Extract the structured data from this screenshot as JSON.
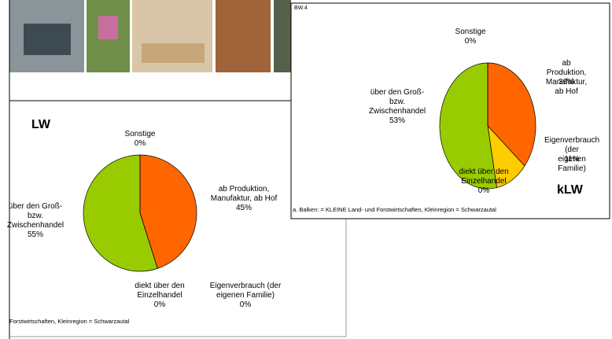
{
  "chart_data": [
    {
      "type": "pie",
      "title": "LW",
      "categories": [
        "ab Produktion,\nManufaktur, ab Hof",
        "Eigenverbrauch (der\neigenen Familie)",
        "diekt über den\nEinzelhandel",
        "über den Groß-\nbzw.\nZwischenhandel",
        "Sonstige"
      ],
      "values": [
        45,
        0,
        0,
        55,
        0
      ],
      "value_labels": [
        "45%",
        "0%",
        "0%",
        "55%",
        "0%"
      ],
      "colors": [
        "#ff6600",
        "#ffcc00",
        "#336600",
        "#99cc00",
        "#3366ff"
      ],
      "footer": "Forstwirtschaften, Kleinregion = Schwarzautal"
    },
    {
      "type": "pie",
      "title": "kLW",
      "subtitle": "BW.4",
      "categories": [
        "ab Produktion,\nManufaktur, ab Hof",
        "Eigenverbrauch (der\neigenen Familie)",
        "diekt über den\nEinzelhandel",
        "über den Groß-\nbzw.\nZwischenhandel",
        "Sonstige"
      ],
      "values": [
        36,
        11,
        0,
        53,
        0
      ],
      "value_labels": [
        "36%",
        "11%",
        "0%",
        "53%",
        "0%"
      ],
      "colors": [
        "#ff6600",
        "#ffcc00",
        "#336600",
        "#99cc00",
        "#3366ff"
      ],
      "footer": "a. Balken: = KLEINE Land- und Forstwirtschaften, Kleinregion = Schwarzautal"
    }
  ]
}
